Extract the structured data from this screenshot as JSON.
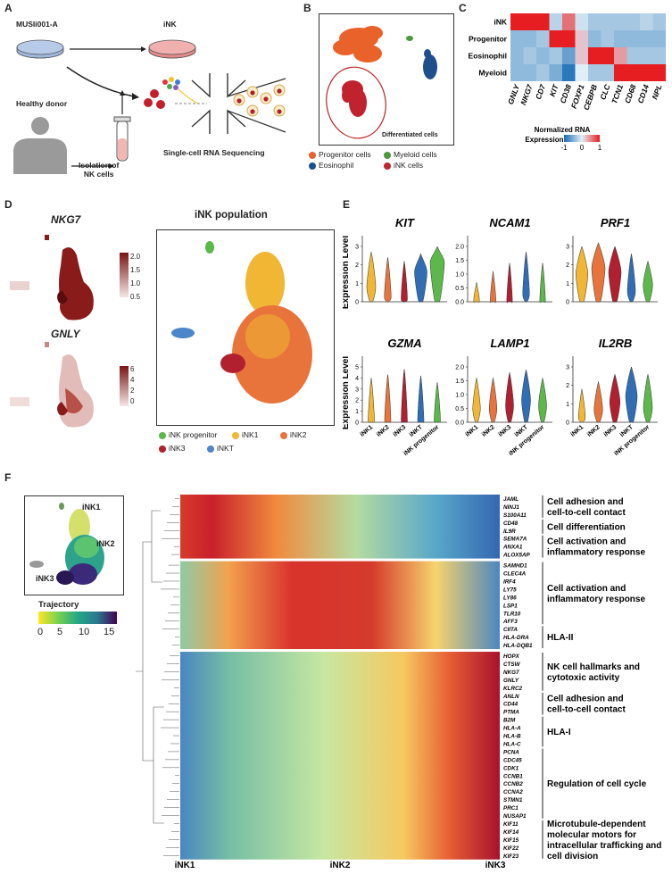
{
  "panels": {
    "a": "A",
    "b": "B",
    "c": "C",
    "d": "D",
    "e": "E",
    "f": "F"
  },
  "panel_a": {
    "cell_line": "MUSIi001-A",
    "ink": "iNK",
    "donor": "Healthy donor",
    "isolation": "Isolation of\nNK cells",
    "scrnaseq": "Single-cell RNA Sequencing"
  },
  "panel_b": {
    "box_label": "Differentiated cells",
    "legend": [
      {
        "label": "Progenitor cells",
        "color": "#e8622a"
      },
      {
        "label": "Myeloid cells",
        "color": "#4a9a3c"
      },
      {
        "label": "Eosinophil",
        "color": "#1f4e8c"
      },
      {
        "label": "iNK cells",
        "color": "#c0222e"
      }
    ]
  },
  "panel_c": {
    "rows": [
      "iNK",
      "Progenitor",
      "Eosinophil",
      "Myeloid"
    ],
    "genes": [
      "GNLY",
      "NKG7",
      "CD7",
      "KIT",
      "CD38",
      "FOXP1",
      "CEBPB",
      "CLC",
      "TCN1",
      "CD68",
      "CD14",
      "NPL"
    ],
    "matrix": [
      [
        1,
        1,
        1,
        -0.2,
        0.6,
        -0.1,
        -0.3,
        -0.3,
        -0.3,
        -0.3,
        -0.2,
        -0.3
      ],
      [
        -0.4,
        -0.4,
        -0.3,
        1,
        1,
        0.2,
        -0.4,
        -0.3,
        -0.4,
        -0.4,
        -0.4,
        -0.4
      ],
      [
        -0.4,
        -0.3,
        -0.4,
        -0.3,
        -0.6,
        0.2,
        1,
        1,
        0.4,
        -0.3,
        -0.3,
        -0.3
      ],
      [
        -0.4,
        -0.4,
        -0.3,
        -0.5,
        -0.9,
        0.0,
        -0.3,
        -0.3,
        1,
        1,
        1,
        1
      ]
    ],
    "colorbar_title": "Normalized RNA\nExpression",
    "ticks": [
      "-1",
      "0",
      "1"
    ]
  },
  "panel_d": {
    "gene1": "NKG7",
    "gene1_ticks": [
      "2.0",
      "1.5",
      "1.0",
      "0.5"
    ],
    "gene2": "GNLY",
    "gene2_ticks": [
      "6",
      "4",
      "2",
      "0"
    ],
    "title": "iNK population",
    "legend": [
      {
        "label": "iNK progenitor",
        "color": "#5cb84a"
      },
      {
        "label": "iNK1",
        "color": "#f0b634"
      },
      {
        "label": "iNK2",
        "color": "#e8743b"
      },
      {
        "label": "iNK3",
        "color": "#b0202e"
      },
      {
        "label": "iNKT",
        "color": "#4a86c8"
      }
    ]
  },
  "chart_data": [
    {
      "type": "violin",
      "title": "KIT",
      "ylabel": "Expression Level",
      "ylim": [
        0,
        3
      ],
      "yticks": [
        "0",
        "1",
        "2",
        "3"
      ],
      "categories": [
        "iNK1",
        "iNK2",
        "iNK3",
        "iNKT",
        "iNK progenitor"
      ],
      "medians": [
        0.8,
        0.3,
        0.2,
        1.6,
        2.1
      ],
      "maxima": [
        2.7,
        2.4,
        2.2,
        2.6,
        3.0
      ]
    },
    {
      "type": "violin",
      "title": "NCAM1",
      "ylim": [
        0,
        2
      ],
      "yticks": [
        "0.0",
        "0.5",
        "1.0",
        "1.5",
        "2.0"
      ],
      "categories": [
        "iNK1",
        "iNK2",
        "iNK3",
        "iNKT",
        "iNK progenitor"
      ],
      "medians": [
        0.05,
        0.05,
        0.05,
        0.3,
        0.05
      ],
      "maxima": [
        0.7,
        1.1,
        1.4,
        1.8,
        1.4
      ]
    },
    {
      "type": "violin",
      "title": "PRF1",
      "ylim": [
        0,
        3
      ],
      "yticks": [
        "0",
        "1",
        "2",
        "3"
      ],
      "categories": [
        "iNK1",
        "iNK2",
        "iNK3",
        "iNKT",
        "iNK progenitor"
      ],
      "medians": [
        1.5,
        1.8,
        1.6,
        0.6,
        0.9
      ],
      "maxima": [
        3.0,
        3.2,
        3.0,
        2.6,
        2.2
      ]
    },
    {
      "type": "violin",
      "title": "GZMA",
      "ylabel": "Expression Level",
      "ylim": [
        0,
        5
      ],
      "yticks": [
        "0",
        "1",
        "2",
        "3",
        "4",
        "5"
      ],
      "categories": [
        "iNK1",
        "iNK2",
        "iNK3",
        "iNKT",
        "iNK progenitor"
      ],
      "medians": [
        0.2,
        0.2,
        0.2,
        0.2,
        0.2
      ],
      "maxima": [
        4.0,
        4.3,
        4.8,
        4.2,
        3.6
      ]
    },
    {
      "type": "violin",
      "title": "LAMP1",
      "ylim": [
        0,
        2
      ],
      "yticks": [
        "0.0",
        "0.5",
        "1.0",
        "1.5",
        "2.0"
      ],
      "categories": [
        "iNK1",
        "iNK2",
        "iNK3",
        "iNKT",
        "iNK progenitor"
      ],
      "medians": [
        0.5,
        0.5,
        0.6,
        0.8,
        0.6
      ],
      "maxima": [
        1.6,
        1.6,
        1.8,
        1.9,
        1.6
      ]
    },
    {
      "type": "violin",
      "title": "IL2RB",
      "ylim": [
        0,
        3
      ],
      "yticks": [
        "0",
        "1",
        "2",
        "3"
      ],
      "categories": [
        "iNK1",
        "iNK2",
        "iNK3",
        "iNKT",
        "iNK progenitor"
      ],
      "medians": [
        0.3,
        0.7,
        1.1,
        1.4,
        0.8
      ],
      "maxima": [
        1.8,
        2.2,
        2.6,
        3.0,
        2.6
      ]
    }
  ],
  "panel_e": {
    "ylabel": "Expression Level"
  },
  "panel_f": {
    "umap_labels": [
      "iNK1",
      "iNK2",
      "iNK3"
    ],
    "trajectory_title": "Trajectory",
    "trajectory_ticks": [
      "0",
      "5",
      "10",
      "15"
    ],
    "xaxis": [
      "iNK1",
      "iNK2",
      "iNK3"
    ],
    "genes": [
      "JAML",
      "NINJ1",
      "S100A11",
      "CD48",
      "IL9R",
      "SEMA7A",
      "ANXA1",
      "ALOX5AP",
      "SAMHD1",
      "CLEC4A",
      "IRF4",
      "LY75",
      "LY86",
      "LSP1",
      "TLR10",
      "AFF3",
      "CIITA",
      "HLA-DRA",
      "HLA-DQB1",
      "HOPX",
      "CTSW",
      "NKG7",
      "GNLY",
      "KLRC2",
      "ANLN",
      "CD44",
      "PTMA",
      "B2M",
      "HLA-A",
      "HLA-B",
      "HLA-C",
      "PCNA",
      "CDC45",
      "CDK1",
      "CCNB1",
      "CCNB2",
      "CCNA2",
      "STMN1",
      "PRC1",
      "NUSAP1",
      "KIF11",
      "KIF14",
      "KIF15",
      "KIF22",
      "KIF23"
    ],
    "annotations": [
      "Cell adhesion and\ncell-to-cell contact",
      "Cell differentiation",
      "Cell activation and\ninflammatory response",
      "Cell activation and\ninflammatory response",
      "HLA-II",
      "NK cell hallmarks and\ncytotoxic activity",
      "Cell adhesion and\ncell-to-cell contact",
      "HLA-I",
      "Regulation of cell cycle",
      "Microtubule-dependent\nmolecular motors for\nintracellular trafficking and\ncell division"
    ]
  }
}
